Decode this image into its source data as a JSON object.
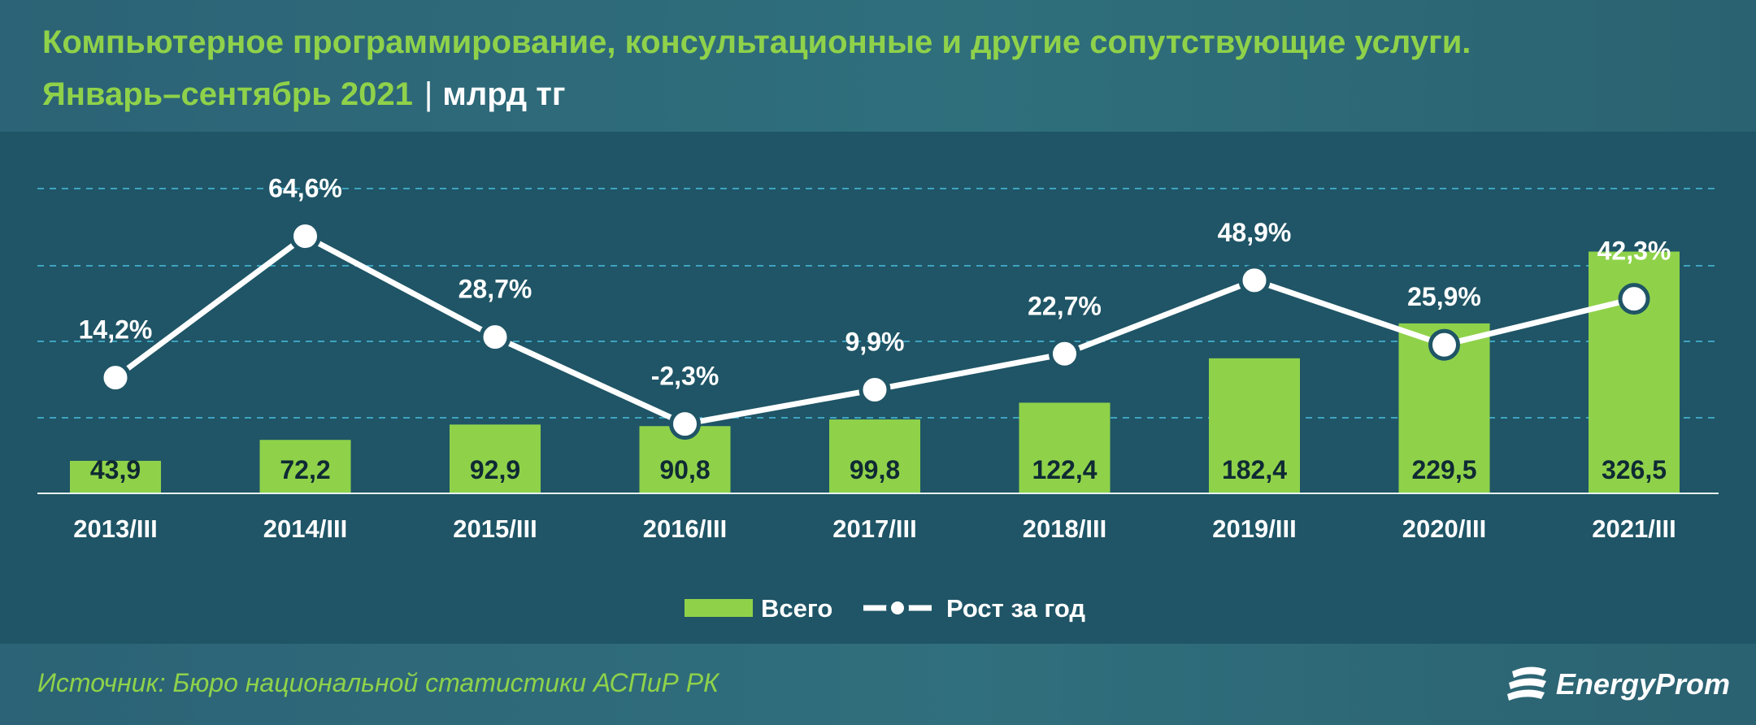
{
  "header": {
    "title": "Компьютерное программирование, консультационные и другие сопутствующие услуги.",
    "subtitle": "Январь–сентябрь 2021",
    "unit_separator": "|",
    "unit": "млрд тг"
  },
  "chart_data": {
    "type": "bar",
    "categories": [
      "2013/III",
      "2014/III",
      "2015/III",
      "2016/III",
      "2017/III",
      "2018/III",
      "2019/III",
      "2020/III",
      "2021/III"
    ],
    "series": [
      {
        "name": "Всего",
        "type": "bar",
        "values": [
          43.9,
          72.2,
          92.9,
          90.8,
          99.8,
          122.4,
          182.4,
          229.5,
          326.5
        ],
        "labels": [
          "43,9",
          "72,2",
          "92,9",
          "90,8",
          "99,8",
          "122,4",
          "182,4",
          "229,5",
          "326,5"
        ],
        "color": "#8fd24a"
      },
      {
        "name": "Рост за год",
        "type": "line",
        "values": [
          14.2,
          64.6,
          28.7,
          -2.3,
          9.9,
          22.7,
          48.9,
          25.9,
          42.3
        ],
        "labels": [
          "14,2%",
          "64,6%",
          "28,7%",
          "-2,3%",
          "9,9%",
          "22,7%",
          "48,9%",
          "25,9%",
          "42,3%"
        ],
        "color": "#ffffff"
      }
    ],
    "bar_ylim": [
      0,
      450
    ],
    "line_ylim": [
      -3,
      70
    ],
    "grid": "dashed horizontal",
    "legend": "bottom-center"
  },
  "footer": {
    "source": "Источник: Бюро национальной статистики АСПиР РК",
    "brand": "EnergyProm"
  },
  "colors": {
    "background": "#1f5566",
    "header_band": "#2c6376",
    "accent_green": "#8fd24a",
    "gridline": "#3fa3c0",
    "axis": "#e8f0f2"
  }
}
